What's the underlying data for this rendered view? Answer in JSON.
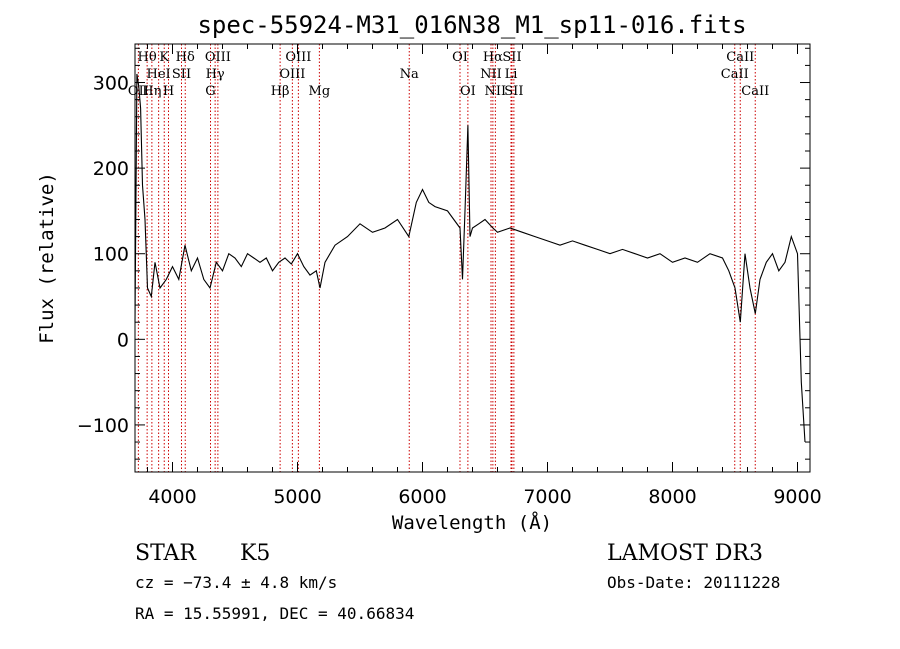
{
  "chart_data": {
    "type": "line",
    "title": "spec-55924-M31_016N38_M1_sp11-016.fits",
    "xlabel": "Wavelength (Å)",
    "ylabel": "Flux (relative)",
    "xlim": [
      3700,
      9100
    ],
    "ylim": [
      -155,
      345
    ],
    "xticks": [
      {
        "value": 4000,
        "label": "4000"
      },
      {
        "value": 5000,
        "label": "5000"
      },
      {
        "value": 6000,
        "label": "6000"
      },
      {
        "value": 7000,
        "label": "7000"
      },
      {
        "value": 8000,
        "label": "8000"
      },
      {
        "value": 9000,
        "label": "9000"
      }
    ],
    "yticks": [
      {
        "value": -100,
        "label": "−100"
      },
      {
        "value": 0,
        "label": "0"
      },
      {
        "value": 100,
        "label": "100"
      },
      {
        "value": 200,
        "label": "200"
      },
      {
        "value": 300,
        "label": "300"
      }
    ],
    "series": [
      {
        "name": "flux",
        "x": [
          3700,
          3715,
          3730,
          3745,
          3760,
          3780,
          3800,
          3830,
          3860,
          3900,
          3950,
          4000,
          4050,
          4100,
          4150,
          4200,
          4250,
          4300,
          4350,
          4400,
          4450,
          4500,
          4550,
          4600,
          4650,
          4700,
          4750,
          4800,
          4850,
          4900,
          4950,
          5000,
          5050,
          5100,
          5150,
          5180,
          5220,
          5300,
          5400,
          5500,
          5600,
          5700,
          5800,
          5890,
          5950,
          6000,
          6050,
          6100,
          6200,
          6250,
          6300,
          6320,
          6340,
          6363,
          6380,
          6400,
          6450,
          6500,
          6563,
          6600,
          6700,
          6800,
          6900,
          7000,
          7100,
          7200,
          7300,
          7400,
          7500,
          7600,
          7700,
          7800,
          7900,
          8000,
          8100,
          8200,
          8300,
          8400,
          8450,
          8500,
          8542,
          8580,
          8620,
          8662,
          8700,
          8750,
          8800,
          8850,
          8900,
          8950,
          9000,
          9030,
          9060
        ],
        "y": [
          20,
          310,
          295,
          270,
          180,
          140,
          60,
          50,
          90,
          60,
          70,
          85,
          70,
          110,
          80,
          95,
          70,
          60,
          90,
          80,
          100,
          95,
          85,
          100,
          95,
          90,
          95,
          80,
          90,
          95,
          88,
          100,
          85,
          75,
          80,
          60,
          90,
          110,
          120,
          135,
          125,
          130,
          140,
          120,
          160,
          175,
          160,
          155,
          150,
          140,
          130,
          70,
          150,
          250,
          120,
          130,
          135,
          140,
          130,
          125,
          130,
          125,
          120,
          115,
          110,
          115,
          110,
          105,
          100,
          105,
          100,
          95,
          100,
          90,
          95,
          90,
          100,
          95,
          80,
          60,
          20,
          100,
          60,
          30,
          70,
          90,
          100,
          80,
          90,
          120,
          100,
          -50,
          -120
        ]
      }
    ],
    "spectral_lines": [
      {
        "name": "OII",
        "wavelength": 3727,
        "row": 2
      },
      {
        "name": "Hθ",
        "wavelength": 3797,
        "row": 0
      },
      {
        "name": "Hη",
        "wavelength": 3835,
        "row": 2
      },
      {
        "name": "HeI",
        "wavelength": 3889,
        "row": 1
      },
      {
        "name": "K",
        "wavelength": 3934,
        "row": 0
      },
      {
        "name": "H",
        "wavelength": 3968,
        "row": 2
      },
      {
        "name": "SII",
        "wavelength": 4072,
        "row": 1
      },
      {
        "name": "Hδ",
        "wavelength": 4102,
        "row": 0
      },
      {
        "name": "G",
        "wavelength": 4304,
        "row": 2
      },
      {
        "name": "Hγ",
        "wavelength": 4341,
        "row": 1
      },
      {
        "name": "OIII",
        "wavelength": 4363,
        "row": 0
      },
      {
        "name": "Hβ",
        "wavelength": 4861,
        "row": 2
      },
      {
        "name": "OIII",
        "wavelength": 4959,
        "row": 1
      },
      {
        "name": "OIII",
        "wavelength": 5007,
        "row": 0
      },
      {
        "name": "Mg",
        "wavelength": 5175,
        "row": 2
      },
      {
        "name": "Na",
        "wavelength": 5894,
        "row": 1
      },
      {
        "name": "OI",
        "wavelength": 6300,
        "row": 0
      },
      {
        "name": "OI",
        "wavelength": 6363,
        "row": 2
      },
      {
        "name": "NII",
        "wavelength": 6548,
        "row": 1
      },
      {
        "name": "Hα",
        "wavelength": 6563,
        "row": 0
      },
      {
        "name": "NII",
        "wavelength": 6583,
        "row": 2
      },
      {
        "name": "Li",
        "wavelength": 6708,
        "row": 1
      },
      {
        "name": "SII",
        "wavelength": 6716,
        "row": 0
      },
      {
        "name": "SII",
        "wavelength": 6731,
        "row": 2
      },
      {
        "name": "CaII",
        "wavelength": 8498,
        "row": 1
      },
      {
        "name": "CaII",
        "wavelength": 8542,
        "row": 0
      },
      {
        "name": "CaII",
        "wavelength": 8662,
        "row": 2
      }
    ],
    "line_color": "#000000",
    "marker_color": "#cc0000"
  },
  "info": {
    "class": "STAR",
    "subclass": "K5",
    "survey": "LAMOST DR3",
    "cz": "cz = −73.4 ± 4.8 km/s",
    "obs_date": "Obs-Date: 20111228",
    "coords": "RA =  15.55991, DEC =  40.66834"
  }
}
